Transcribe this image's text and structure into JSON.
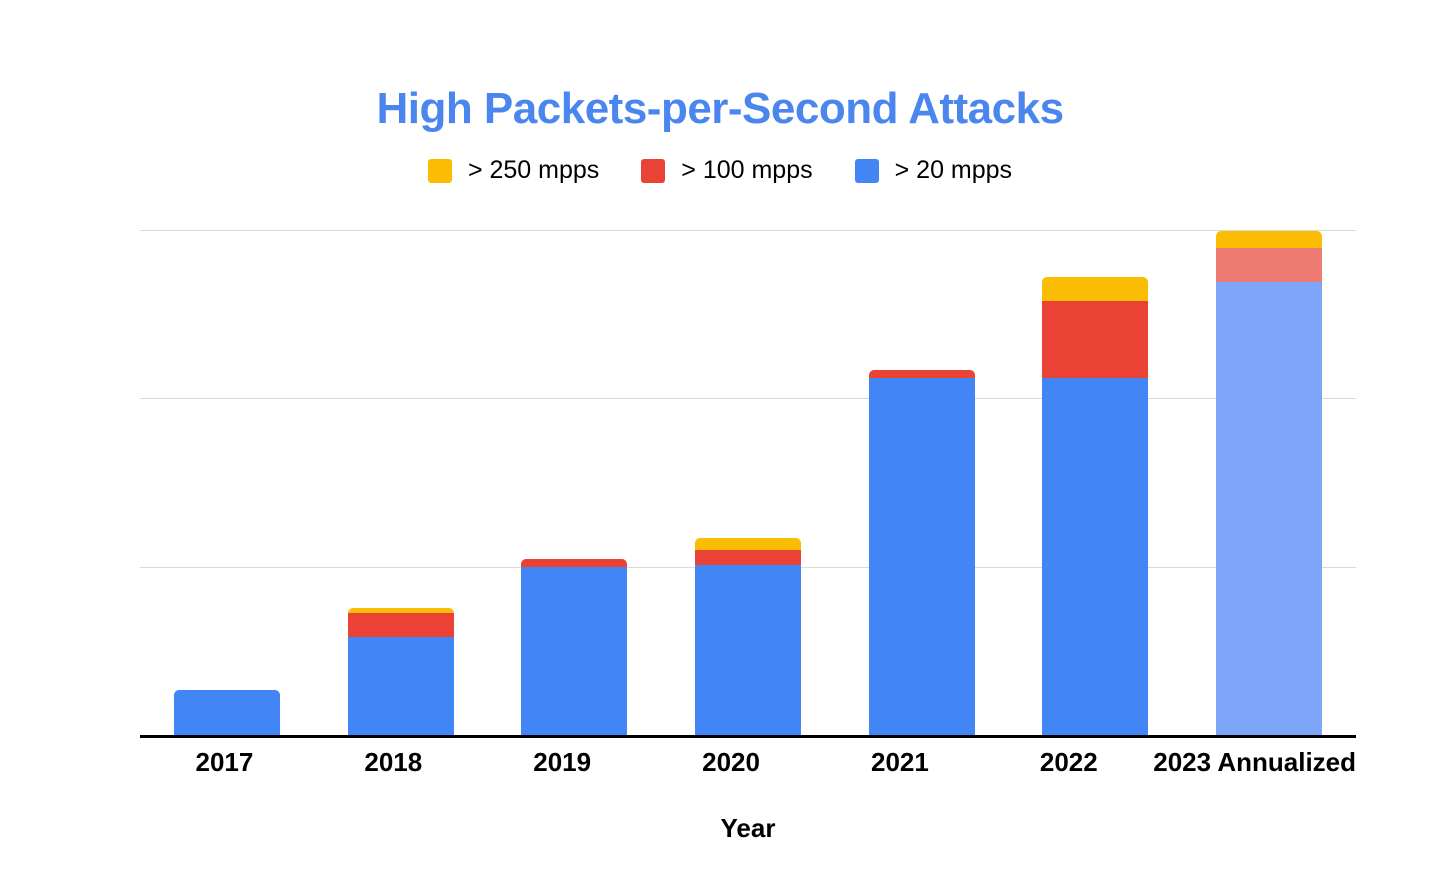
{
  "chart_data": {
    "type": "bar",
    "stacked": true,
    "title": "High Packets-per-Second Attacks",
    "xlabel": "Year",
    "ylabel": "",
    "y_axis_note": "no y-axis tick labels shown; values estimated in gridline units (1 unit = one gridline interval)",
    "ylim": [
      0,
      3
    ],
    "grid": "horizontal gridlines on (4 lines incl. black baseline)",
    "categories": [
      "2017",
      "2018",
      "2019",
      "2020",
      "2021",
      "2022",
      "2023 Annualized"
    ],
    "series": [
      {
        "name": "> 20 mpps",
        "color": "#4285f4",
        "projected_color": "#7ea6f8",
        "values": [
          0.27,
          0.58,
          1.0,
          1.01,
          2.12,
          2.12,
          2.69
        ]
      },
      {
        "name": "> 100 mpps",
        "color": "#ea4335",
        "projected_color": "#ee7b72",
        "values": [
          0,
          0.14,
          0.05,
          0.09,
          0.05,
          0.46,
          0.2
        ]
      },
      {
        "name": "> 250 mpps",
        "color": "#fbbc04",
        "projected_color": "#fbbc04",
        "values": [
          0,
          0.03,
          0,
          0.07,
          0,
          0.14,
          0.1
        ]
      }
    ],
    "totals": [
      0.27,
      0.75,
      1.05,
      1.17,
      2.17,
      2.72,
      2.99
    ],
    "projected_category_index": 6,
    "legend": {
      "position": "top",
      "entries": [
        {
          "label": "> 250 mpps",
          "color": "#fbbc04",
          "icon": "legend-swatch-yellow-icon"
        },
        {
          "label": "> 100 mpps",
          "color": "#ea4335",
          "icon": "legend-swatch-red-icon"
        },
        {
          "label": "> 20 mpps",
          "color": "#4285f4",
          "icon": "legend-swatch-blue-icon"
        }
      ]
    },
    "colors": {
      "title_text": "#4a86ee",
      "axis_text": "#000000",
      "gridline": "#d9d9d9",
      "baseline": "#000000",
      "background": "#ffffff"
    }
  }
}
